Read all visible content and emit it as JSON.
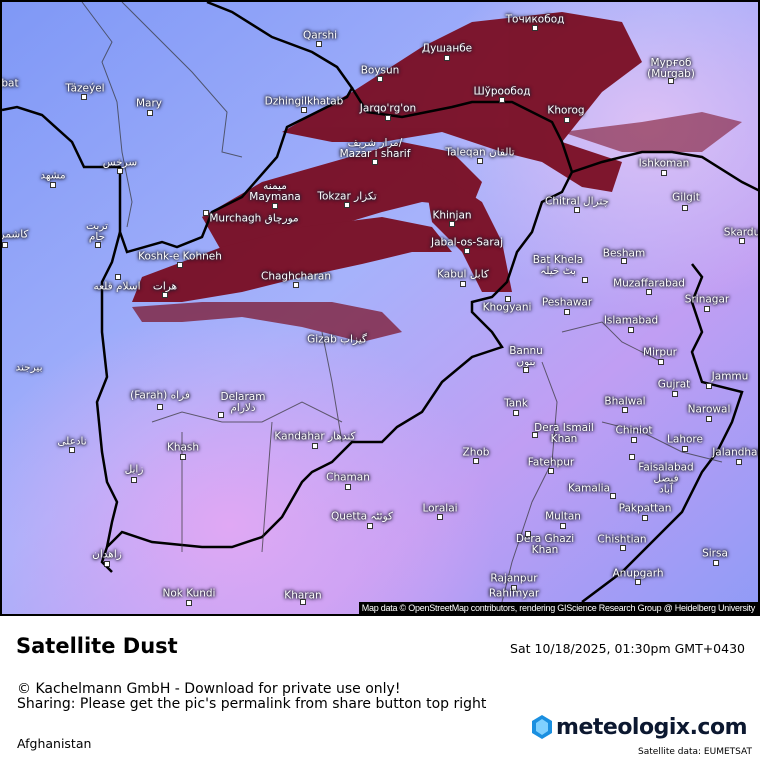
{
  "map": {
    "attribution": "Map data © OpenStreetMap contributors, rendering GIScience Research Group @ Heidelberg University",
    "colors": {
      "base": "#9aa6fb",
      "dust": "#7a0a1a",
      "border": "#000000"
    },
    "cities": [
      "Qarshi",
      "Boysun",
      "Душанбе",
      "Точикобод",
      "Мурғоб\n(Murgab)",
      "Täzeýel",
      "Mary",
      "Dzhingilkhatab",
      "Jarqo'rg'on",
      "Шўрообод",
      "Khorog",
      "مزار شریف/\nMazar i sharif",
      "Taleqan تالقان",
      "Ishkoman",
      "Gilgit",
      "سرخس",
      "مشهد",
      "میمنه\nMaymana",
      "Tokzar تکزار",
      "Murchagh مورچاق",
      "Chitral چترال",
      "Khinjan",
      "Jabal-os-Saraj",
      "Skardu",
      "تربت\nجام",
      "کاشمر",
      "Koshk-e Kohneh",
      "Besham",
      "Bat Khela\nبٹ خیلہ",
      "Kabul کابل",
      "Chaghcharan",
      "Muzaffarabad",
      "اسلام قلعه",
      "هرات",
      "Srinagar",
      "Peshawar",
      "Khogyani",
      "Islamabad",
      "Gizab گیزاب",
      "Mirpur",
      "Bannu\nبنوں",
      "Jammu",
      "Gujrat",
      "بیرجند",
      "(Farah) فراه",
      "Delaram\nدلارام",
      "Tank",
      "Bhalwal",
      "Narowal",
      "Dera Ismail\nKhan",
      "Chiniot",
      "Lahore",
      "Jalandhar",
      "Kandahar کندهار",
      "Khash",
      "نادعلی",
      "Zhob",
      "Fatehpur",
      "Faisalabad\nفیصل\nآباد",
      "زابل",
      "Chaman",
      "Kamalia",
      "Loralai",
      "Pakpattan",
      "Quetta کوئٹہ",
      "Multan",
      "Dera Ghazi\nKhan",
      "Chishtian",
      "زاهدان",
      "Sirsa",
      "Anupgarh",
      "Rajanpur",
      "Nok Kundi",
      "Rahimyar",
      "Kharan",
      "bat"
    ]
  },
  "footer": {
    "title": "Satellite Dust",
    "datetime": "Sat 10/18/2025, 01:30pm GMT+0430",
    "copyright": "© Kachelmann GmbH - Download for private use only!",
    "sharing": "Sharing: Please get the pic's permalink from share button top right",
    "region": "Afghanistan",
    "logo": "meteologix.com",
    "satellite_source": "Satellite data: EUMETSAT"
  }
}
